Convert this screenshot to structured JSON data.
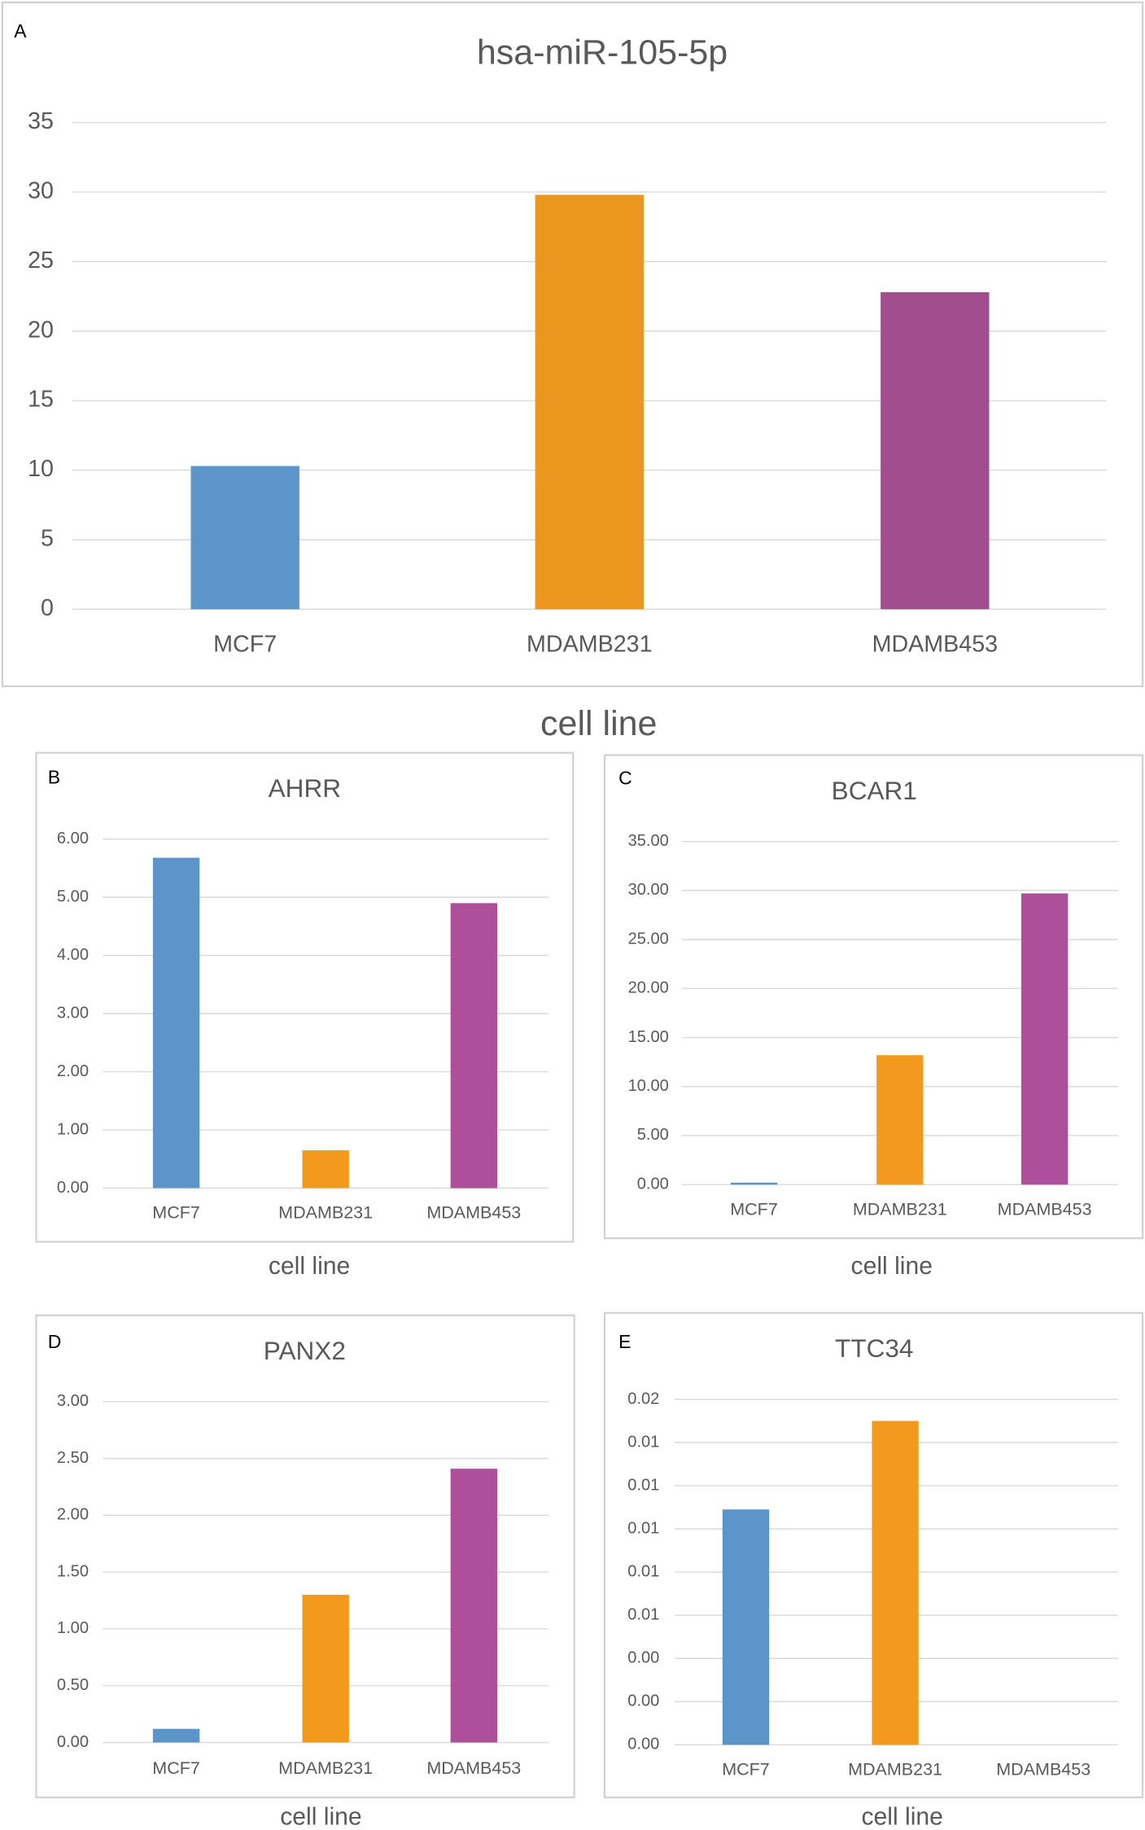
{
  "chart_data": [
    {
      "type": "bar",
      "panel": "A",
      "title": "hsa-miR-105-5p",
      "x_label": "cell line",
      "categories": [
        "MCF7",
        "MDAMB231",
        "MDAMB453"
      ],
      "values": [
        10.3,
        29.8,
        22.8
      ],
      "colors": [
        "#5b95c9",
        "#eb961f",
        "#a24d8e"
      ],
      "grid": true,
      "ylim": [
        0,
        35
      ],
      "yticks": [
        0,
        5,
        10,
        15,
        20,
        25,
        30,
        35
      ]
    },
    {
      "type": "bar",
      "panel": "B",
      "title": "AHRR",
      "x_label": "cell line",
      "categories": [
        "MCF7",
        "MDAMB231",
        "MDAMB453"
      ],
      "values": [
        5.68,
        0.65,
        4.9
      ],
      "colors": [
        "#5b95c9",
        "#f39a1e",
        "#ad4f9b"
      ],
      "grid": true,
      "ylim": [
        0,
        6
      ],
      "yticks": [
        {
          "value": 0,
          "label": "0.00"
        },
        {
          "value": 1,
          "label": "1.00"
        },
        {
          "value": 2,
          "label": "2.00"
        },
        {
          "value": 3,
          "label": "3.00"
        },
        {
          "value": 4,
          "label": "4.00"
        },
        {
          "value": 5,
          "label": "5.00"
        },
        {
          "value": 6,
          "label": "6.00"
        }
      ]
    },
    {
      "type": "bar",
      "panel": "C",
      "title": "BCAR1",
      "x_label": "cell line",
      "categories": [
        "MCF7",
        "MDAMB231",
        "MDAMB453"
      ],
      "values": [
        0.2,
        13.2,
        29.7
      ],
      "colors": [
        "#5b95c9",
        "#f39a1e",
        "#ad4f9b"
      ],
      "grid": true,
      "ylim": [
        0,
        35
      ],
      "yticks": [
        {
          "value": 0,
          "label": "0.00"
        },
        {
          "value": 5,
          "label": "5.00"
        },
        {
          "value": 10,
          "label": "10.00"
        },
        {
          "value": 15,
          "label": "15.00"
        },
        {
          "value": 20,
          "label": "20.00"
        },
        {
          "value": 25,
          "label": "25.00"
        },
        {
          "value": 30,
          "label": "30.00"
        },
        {
          "value": 35,
          "label": "35.00"
        }
      ]
    },
    {
      "type": "bar",
      "panel": "D",
      "title": "PANX2",
      "x_label": "cell line",
      "categories": [
        "MCF7",
        "MDAMB231",
        "MDAMB453"
      ],
      "values": [
        0.12,
        1.3,
        2.41
      ],
      "colors": [
        "#5b95c9",
        "#f39a1e",
        "#ad4f9b"
      ],
      "grid": true,
      "ylim": [
        0,
        3
      ],
      "yticks": [
        {
          "value": 0,
          "label": "0.00"
        },
        {
          "value": 0.5,
          "label": "0.50"
        },
        {
          "value": 1,
          "label": "1.00"
        },
        {
          "value": 1.5,
          "label": "1.50"
        },
        {
          "value": 2,
          "label": "2.00"
        },
        {
          "value": 2.5,
          "label": "2.50"
        },
        {
          "value": 3,
          "label": "3.00"
        }
      ]
    },
    {
      "type": "bar",
      "panel": "E",
      "title": "TTC34",
      "x_label": "cell line",
      "categories": [
        "MCF7",
        "MDAMB231",
        "MDAMB453"
      ],
      "values": [
        0.0109,
        0.015,
        0
      ],
      "colors": [
        "#5b95c9",
        "#f39a1e",
        "#ad4f9b"
      ],
      "grid": true,
      "ylim": [
        0,
        0.016
      ],
      "yticks": [
        {
          "value": 0,
          "label": "0.00"
        },
        {
          "value": 0.002,
          "label": "0.00"
        },
        {
          "value": 0.004,
          "label": "0.00"
        },
        {
          "value": 0.006,
          "label": "0.01"
        },
        {
          "value": 0.008,
          "label": "0.01"
        },
        {
          "value": 0.01,
          "label": "0.01"
        },
        {
          "value": 0.012,
          "label": "0.01"
        },
        {
          "value": 0.014,
          "label": "0.01"
        },
        {
          "value": 0.016,
          "label": "0.02"
        }
      ]
    }
  ]
}
